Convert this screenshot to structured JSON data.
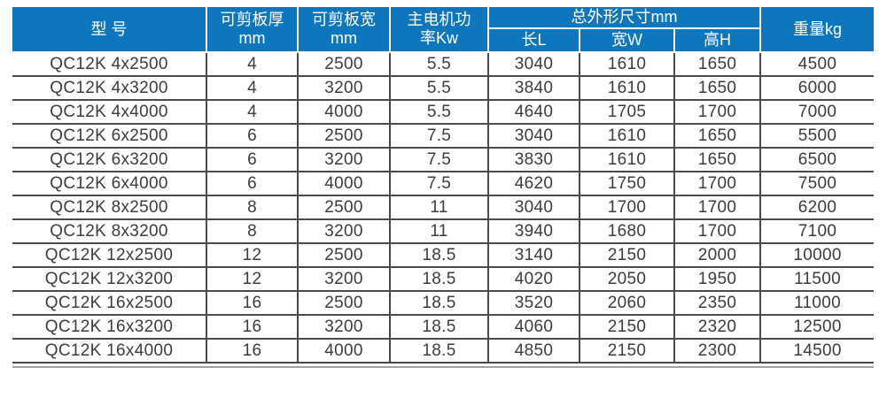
{
  "table": {
    "header": {
      "model": "型 号",
      "thickness": "可剪板厚\nmm",
      "cut_width": "可剪板宽\nmm",
      "motor_power": "主电机功\n率Kw",
      "overall_dims": "总外形尺寸mm",
      "dim_length": "长L",
      "dim_width": "宽W",
      "dim_height": "高H",
      "weight": "重量kg"
    },
    "rows": [
      [
        "QC12K 4x2500",
        "4",
        "2500",
        "5.5",
        "3040",
        "1610",
        "1650",
        "4500"
      ],
      [
        "QC12K 4x3200",
        "4",
        "3200",
        "5.5",
        "3840",
        "1610",
        "1650",
        "6000"
      ],
      [
        "QC12K 4x4000",
        "4",
        "4000",
        "5.5",
        "4640",
        "1705",
        "1700",
        "7000"
      ],
      [
        "QC12K 6x2500",
        "6",
        "2500",
        "7.5",
        "3040",
        "1610",
        "1650",
        "5500"
      ],
      [
        "QC12K 6x3200",
        "6",
        "3200",
        "7.5",
        "3830",
        "1610",
        "1650",
        "6500"
      ],
      [
        "QC12K 6x4000",
        "6",
        "4000",
        "7.5",
        "4620",
        "1750",
        "1700",
        "7500"
      ],
      [
        "QC12K 8x2500",
        "8",
        "2500",
        "11",
        "3040",
        "1700",
        "1700",
        "6200"
      ],
      [
        "QC12K 8x3200",
        "8",
        "3200",
        "11",
        "3940",
        "1680",
        "1700",
        "7100"
      ],
      [
        "QC12K 12x2500",
        "12",
        "2500",
        "18.5",
        "3140",
        "2150",
        "2000",
        "10000"
      ],
      [
        "QC12K 12x3200",
        "12",
        "3200",
        "18.5",
        "4020",
        "2050",
        "1950",
        "11500"
      ],
      [
        "QC12K 16x2500",
        "16",
        "2500",
        "18.5",
        "3520",
        "2060",
        "2350",
        "11000"
      ],
      [
        "QC12K 16x3200",
        "16",
        "3200",
        "18.5",
        "4060",
        "2150",
        "2320",
        "12500"
      ],
      [
        "QC12K 16x4000",
        "16",
        "4000",
        "18.5",
        "4850",
        "2150",
        "2300",
        "14500"
      ]
    ]
  },
  "colors": {
    "header_bg": "#0E76BC",
    "header_text": "#FFFFFF",
    "body_text": "#3C3C3C",
    "grid_line": "#4A4A4A"
  }
}
